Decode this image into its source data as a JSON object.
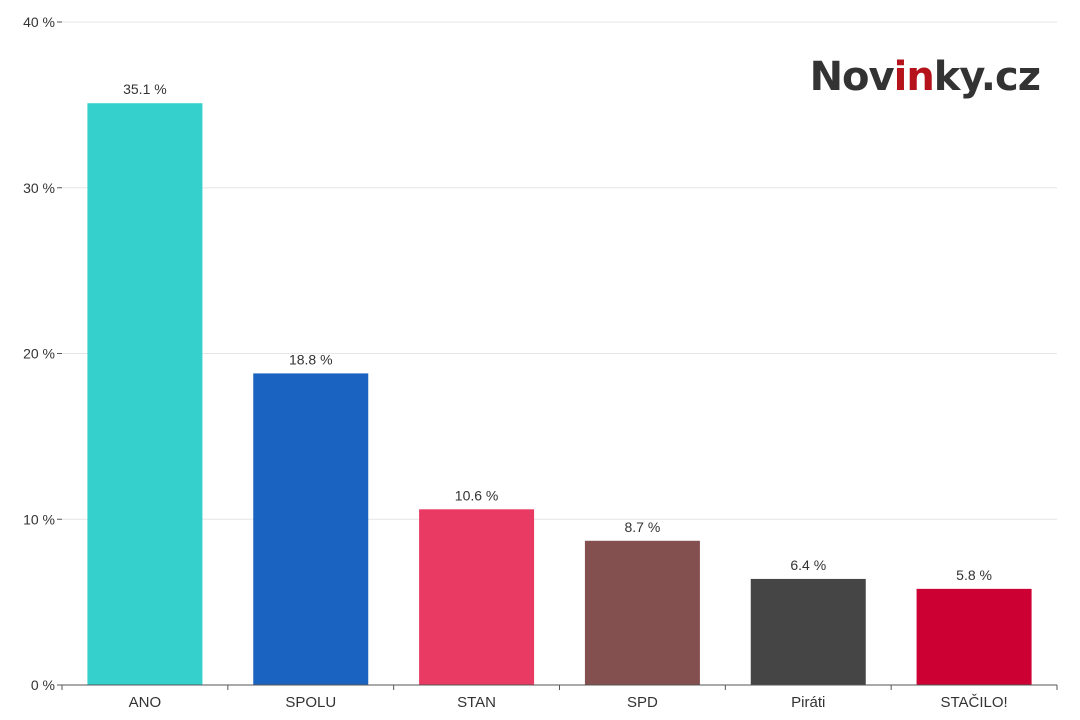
{
  "brand": {
    "prefix": "Nov",
    "highlight": "in",
    "suffix": "ky.cz",
    "text_color": "#333333",
    "highlight_color": "#b5121b"
  },
  "chart_data": {
    "type": "bar",
    "categories": [
      "ANO",
      "SPOLU",
      "STAN",
      "SPD",
      "Piráti",
      "STAČILO!"
    ],
    "values": [
      35.1,
      18.8,
      10.6,
      8.7,
      6.4,
      5.8
    ],
    "data_labels": [
      "35.1 %",
      "18.8 %",
      "10.6 %",
      "8.7 %",
      "6.4 %",
      "5.8 %"
    ],
    "colors": [
      "#35cfcc",
      "#1a63c1",
      "#e83a63",
      "#834f4f",
      "#454545",
      "#cc0033"
    ],
    "title": "",
    "xlabel": "",
    "ylabel": "",
    "ylim": [
      0,
      40
    ],
    "yticks": [
      0,
      10,
      20,
      30,
      40
    ],
    "ytick_labels": [
      "0 %",
      "10 %",
      "20 %",
      "30 %",
      "40 %"
    ],
    "grid": true,
    "legend": "none"
  }
}
